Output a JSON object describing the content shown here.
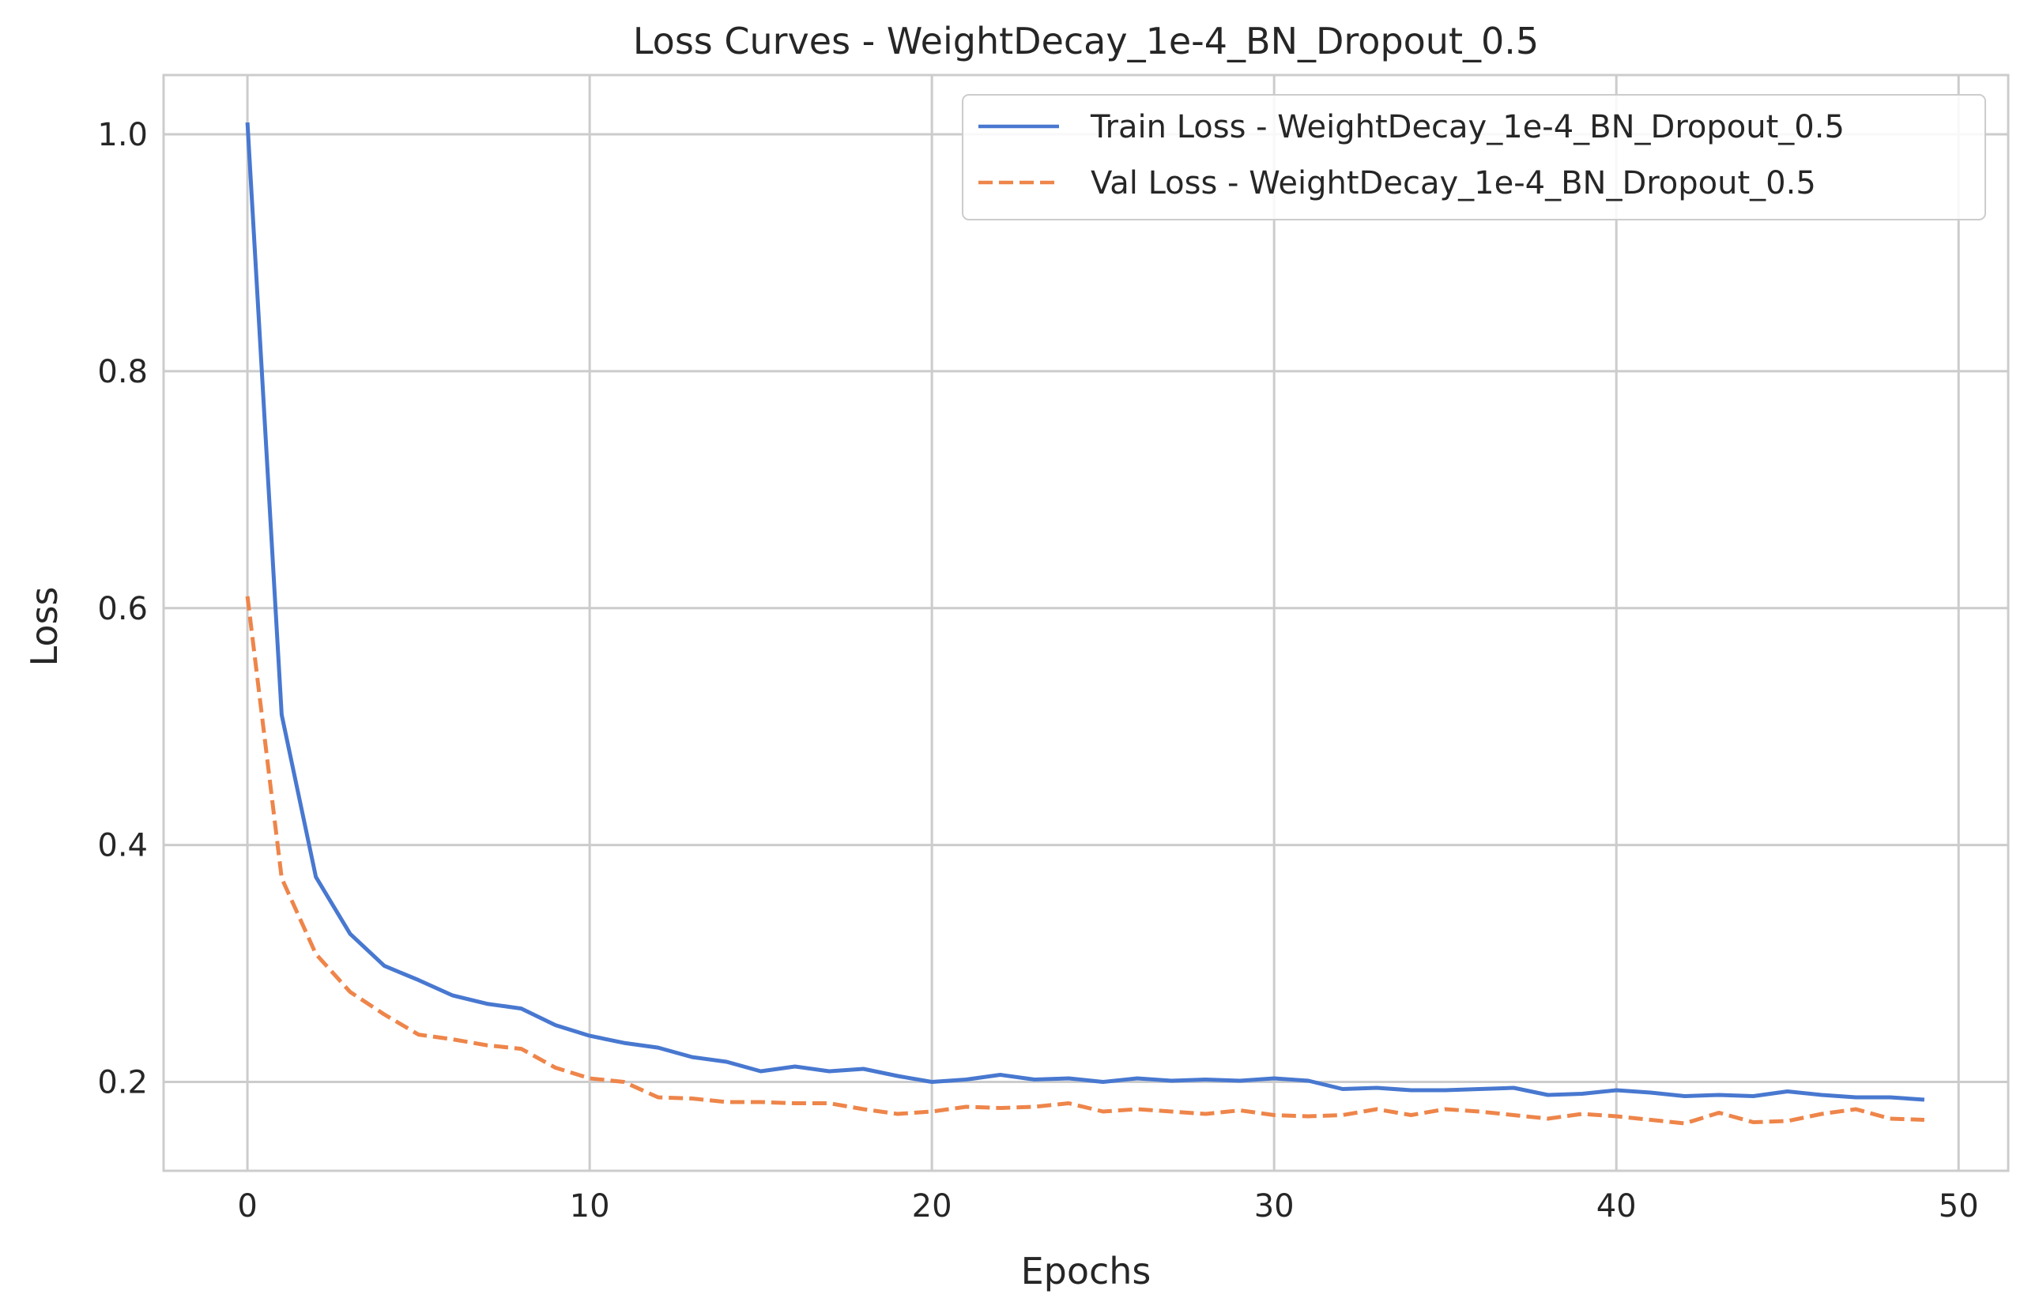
{
  "chart_data": {
    "type": "line",
    "title": "Loss Curves - WeightDecay_1e-4_BN_Dropout_0.5",
    "xlabel": "Epochs",
    "ylabel": "Loss",
    "xlim": [
      -2.45,
      51.45
    ],
    "ylim": [
      0.125,
      1.05
    ],
    "xticks": [
      0,
      10,
      20,
      30,
      40,
      50
    ],
    "yticks": [
      0.2,
      0.4,
      0.6,
      0.8,
      1.0
    ],
    "xtick_labels": [
      "0",
      "10",
      "20",
      "30",
      "40",
      "50"
    ],
    "ytick_labels": [
      "0.2",
      "0.4",
      "0.6",
      "0.8",
      "1.0"
    ],
    "grid": true,
    "legend_position": "top-right",
    "x": [
      0,
      1,
      2,
      3,
      4,
      5,
      6,
      7,
      8,
      9,
      10,
      11,
      12,
      13,
      14,
      15,
      16,
      17,
      18,
      19,
      20,
      21,
      22,
      23,
      24,
      25,
      26,
      27,
      28,
      29,
      30,
      31,
      32,
      33,
      34,
      35,
      36,
      37,
      38,
      39,
      40,
      41,
      42,
      43,
      44,
      45,
      46,
      47,
      48,
      49
    ],
    "series": [
      {
        "name": "Train Loss - WeightDecay_1e-4_BN_Dropout_0.5",
        "color": "#4878d0",
        "dash": "solid",
        "values": [
          1.01,
          0.51,
          0.373,
          0.325,
          0.298,
          0.286,
          0.273,
          0.266,
          0.262,
          0.248,
          0.239,
          0.233,
          0.229,
          0.221,
          0.217,
          0.209,
          0.213,
          0.209,
          0.211,
          0.205,
          0.2,
          0.202,
          0.206,
          0.202,
          0.203,
          0.2,
          0.203,
          0.201,
          0.202,
          0.201,
          0.203,
          0.201,
          0.194,
          0.195,
          0.193,
          0.193,
          0.194,
          0.195,
          0.189,
          0.19,
          0.193,
          0.191,
          0.188,
          0.189,
          0.188,
          0.192,
          0.189,
          0.187,
          0.187,
          0.185
        ]
      },
      {
        "name": "Val Loss - WeightDecay_1e-4_BN_Dropout_0.5",
        "color": "#ee854a",
        "dash": "dashed",
        "values": [
          0.61,
          0.372,
          0.308,
          0.276,
          0.257,
          0.24,
          0.236,
          0.231,
          0.228,
          0.212,
          0.203,
          0.2,
          0.187,
          0.186,
          0.183,
          0.183,
          0.182,
          0.182,
          0.177,
          0.173,
          0.175,
          0.179,
          0.178,
          0.179,
          0.182,
          0.175,
          0.177,
          0.175,
          0.173,
          0.176,
          0.172,
          0.171,
          0.172,
          0.177,
          0.172,
          0.177,
          0.175,
          0.172,
          0.169,
          0.173,
          0.171,
          0.168,
          0.165,
          0.174,
          0.166,
          0.167,
          0.173,
          0.177,
          0.169,
          0.168
        ]
      }
    ]
  }
}
